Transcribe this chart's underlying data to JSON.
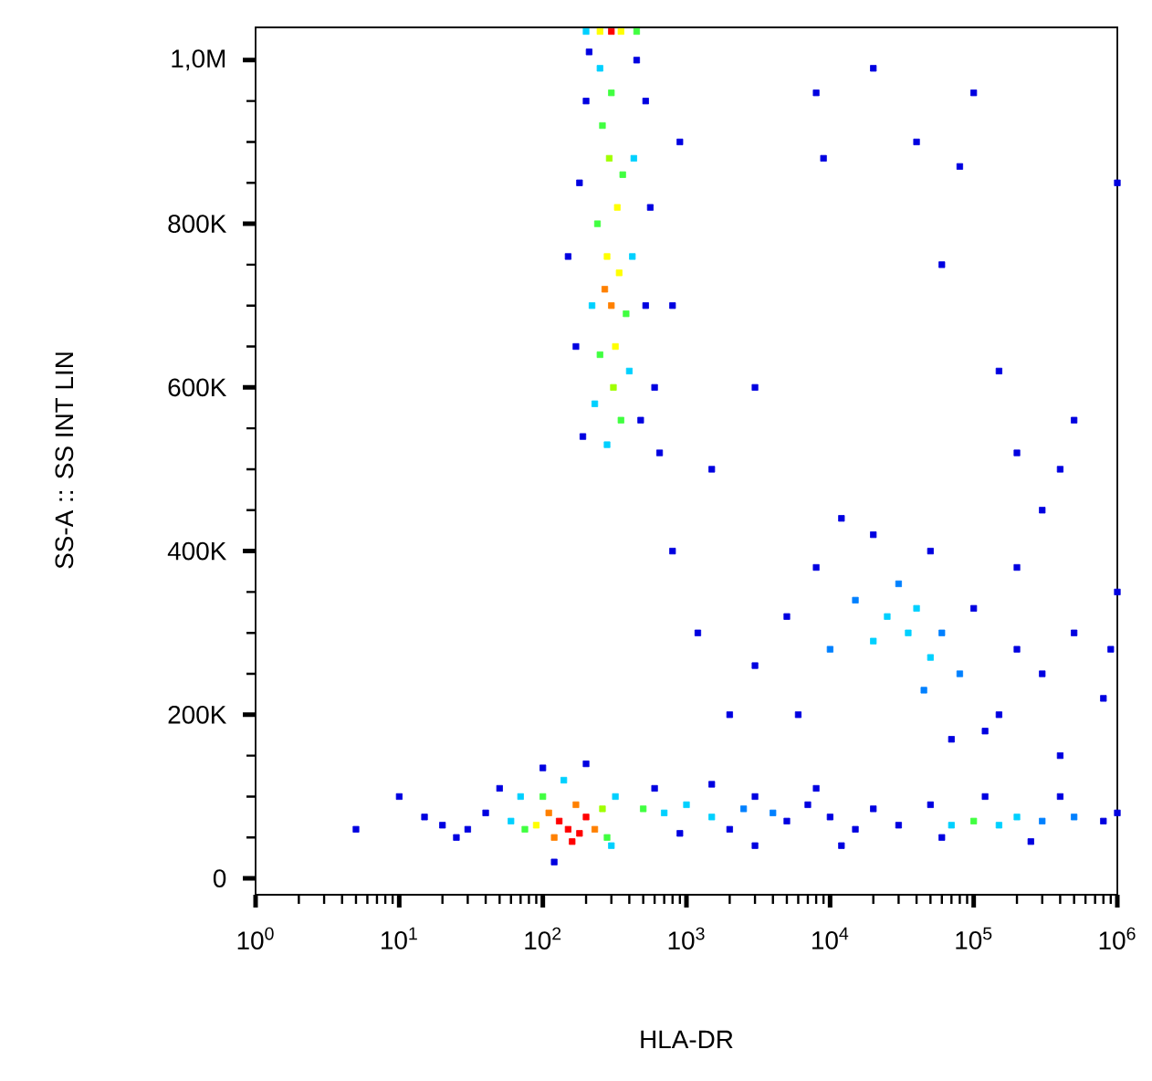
{
  "chart_data": {
    "type": "scatter",
    "xlabel": "HLA-DR",
    "ylabel": "SS-A :: SS INT LIN",
    "log": "x",
    "marker": "square",
    "xlim": [
      1,
      1000000
    ],
    "ylim": [
      -20000,
      1040000
    ],
    "xticks": [
      {
        "value": 1,
        "label": "10$^{0}$"
      },
      {
        "value": 10,
        "label": "10$^{1}$"
      },
      {
        "value": 100,
        "label": "10$^{2}$"
      },
      {
        "value": 1000,
        "label": "10$^{3}$"
      },
      {
        "value": 10000,
        "label": "10$^{4}$"
      },
      {
        "value": 100000,
        "label": "10$^{5}$"
      },
      {
        "value": 1000000,
        "label": "10$^{6}$"
      }
    ],
    "yticks": [
      {
        "value": 0,
        "label": "0"
      },
      {
        "value": 200000,
        "label": "200K"
      },
      {
        "value": 400000,
        "label": "400K"
      },
      {
        "value": 600000,
        "label": "600K"
      },
      {
        "value": 800000,
        "label": "800K"
      },
      {
        "value": 1000000,
        "label": "1,0M"
      }
    ],
    "series": [
      {
        "x": [
          300,
          320,
          280,
          330,
          290,
          310,
          270,
          340,
          260,
          350,
          250,
          380,
          240,
          360,
          300,
          220,
          420,
          230,
          400,
          250,
          430,
          280,
          170,
          180,
          520,
          560,
          190,
          480,
          200,
          520,
          210,
          450,
          600,
          800,
          900,
          150,
          650,
          250,
          300,
          350,
          200,
          450,
          150,
          130,
          180,
          200,
          160,
          110,
          230,
          120,
          170,
          90,
          260,
          100,
          280,
          75,
          60,
          70,
          320,
          300,
          140,
          40,
          30,
          20,
          50,
          15,
          25,
          100,
          200,
          120,
          10,
          5,
          500,
          700,
          1000,
          1500,
          2500,
          4000,
          600,
          900,
          1500,
          2000,
          3000,
          5000,
          7000,
          10000,
          15000,
          20000,
          30000,
          8000,
          50000,
          3000,
          12000,
          70000,
          100000,
          150000,
          200000,
          300000,
          500000,
          800000,
          1000000,
          60000,
          250000,
          400000,
          120000,
          25000,
          35000,
          20000,
          40000,
          50000,
          15000,
          30000,
          60000,
          80000,
          10000,
          45000,
          5000,
          8000,
          20000,
          50000,
          100000,
          150000,
          200000,
          300000,
          500000,
          800000,
          1000000,
          120000,
          70000,
          3000,
          6000,
          400000,
          900000,
          12000,
          200000,
          1200,
          2000,
          800,
          1500,
          3000,
          8000,
          40000,
          80000,
          100000,
          200000,
          500000,
          300000,
          1000000,
          60000,
          150000,
          20000,
          9000,
          400000
        ],
        "values": [
          700000,
          650000,
          760000,
          820000,
          880000,
          600000,
          720000,
          740000,
          920000,
          560000,
          640000,
          690000,
          800000,
          860000,
          960000,
          700000,
          760000,
          580000,
          620000,
          990000,
          880000,
          530000,
          650000,
          850000,
          700000,
          820000,
          540000,
          560000,
          950000,
          950000,
          1010000,
          1000000,
          600000,
          700000,
          900000,
          760000,
          520000,
          1035000,
          1035000,
          1035000,
          1035000,
          1035000,
          60000,
          70000,
          55000,
          75000,
          45000,
          80000,
          60000,
          50000,
          90000,
          65000,
          85000,
          100000,
          50000,
          60000,
          70000,
          100000,
          100000,
          40000,
          120000,
          80000,
          60000,
          65000,
          110000,
          75000,
          50000,
          135000,
          140000,
          20000,
          100000,
          60000,
          85000,
          80000,
          90000,
          75000,
          85000,
          80000,
          110000,
          55000,
          115000,
          60000,
          100000,
          70000,
          90000,
          75000,
          60000,
          85000,
          65000,
          110000,
          90000,
          40000,
          40000,
          65000,
          70000,
          65000,
          75000,
          70000,
          75000,
          70000,
          80000,
          50000,
          45000,
          100000,
          100000,
          320000,
          300000,
          290000,
          330000,
          270000,
          340000,
          360000,
          300000,
          250000,
          280000,
          230000,
          320000,
          380000,
          420000,
          400000,
          330000,
          200000,
          280000,
          250000,
          300000,
          220000,
          350000,
          180000,
          170000,
          260000,
          200000,
          150000,
          280000,
          440000,
          380000,
          300000,
          200000,
          400000,
          500000,
          600000,
          960000,
          900000,
          870000,
          960000,
          520000,
          560000,
          450000,
          850000,
          750000,
          620000,
          990000,
          880000,
          500000
        ],
        "colors": [
          "#ff8000",
          "#ffff00",
          "#ffff00",
          "#ffff00",
          "#a0ff00",
          "#a0ff00",
          "#ff8000",
          "#ffff00",
          "#40ff40",
          "#40ff40",
          "#40ff40",
          "#40ff40",
          "#40ff40",
          "#40ff40",
          "#40ff40",
          "#00d0ff",
          "#00d0ff",
          "#00d0ff",
          "#00d0ff",
          "#00d0ff",
          "#00d0ff",
          "#00d0ff",
          "#0000e0",
          "#0000e0",
          "#0000e0",
          "#0000e0",
          "#0000e0",
          "#0000e0",
          "#0000e0",
          "#0000e0",
          "#0000e0",
          "#0000e0",
          "#0000e0",
          "#0000e0",
          "#0000e0",
          "#0000e0",
          "#0000e0",
          "#ffff00",
          "#ff0000",
          "#ffff00",
          "#00d0ff",
          "#40ff40",
          "#ff0000",
          "#ff0000",
          "#ff0000",
          "#ff0000",
          "#ff0000",
          "#ff8000",
          "#ff8000",
          "#ff8000",
          "#ff8000",
          "#ffff00",
          "#a0ff00",
          "#40ff40",
          "#40ff40",
          "#40ff40",
          "#00d0ff",
          "#00d0ff",
          "#00d0ff",
          "#00d0ff",
          "#00d0ff",
          "#0000e0",
          "#0000e0",
          "#0000e0",
          "#0000e0",
          "#0000e0",
          "#0000e0",
          "#0000e0",
          "#0000e0",
          "#0000e0",
          "#0000e0",
          "#0000e0",
          "#40ff40",
          "#00d0ff",
          "#00d0ff",
          "#00d0ff",
          "#0080ff",
          "#0080ff",
          "#0000e0",
          "#0000e0",
          "#0000e0",
          "#0000e0",
          "#0000e0",
          "#0000e0",
          "#0000e0",
          "#0000e0",
          "#0000e0",
          "#0000e0",
          "#0000e0",
          "#0000e0",
          "#0000e0",
          "#0000e0",
          "#0000e0",
          "#00d0ff",
          "#40ff40",
          "#00d0ff",
          "#00d0ff",
          "#0080ff",
          "#0080ff",
          "#0000e0",
          "#0000e0",
          "#0000e0",
          "#0000e0",
          "#0000e0",
          "#0000e0",
          "#00d0ff",
          "#00d0ff",
          "#00d0ff",
          "#00d0ff",
          "#00d0ff",
          "#0080ff",
          "#0080ff",
          "#0080ff",
          "#0080ff",
          "#0080ff",
          "#0080ff",
          "#0000e0",
          "#0000e0",
          "#0000e0",
          "#0000e0",
          "#0000e0",
          "#0000e0",
          "#0000e0",
          "#0000e0",
          "#0000e0",
          "#0000e0",
          "#0000e0",
          "#0000e0",
          "#0000e0",
          "#0000e0",
          "#0000e0",
          "#0000e0",
          "#0000e0",
          "#0000e0",
          "#0000e0",
          "#0000e0",
          "#0000e0",
          "#0000e0",
          "#0000e0",
          "#0000e0",
          "#0000e0",
          "#0000e0",
          "#0000e0",
          "#0000e0",
          "#0000e0",
          "#0000e0",
          "#0000e0",
          "#0000e0",
          "#0000e0",
          "#0000e0",
          "#0000e0",
          "#0000e0",
          "#0000e0"
        ]
      }
    ]
  }
}
